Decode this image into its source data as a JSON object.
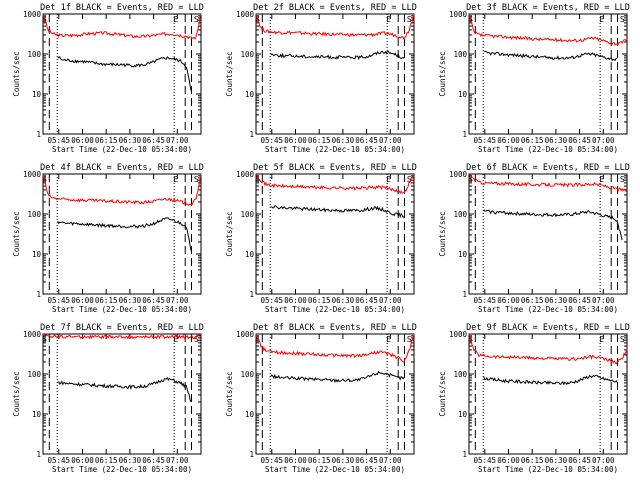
{
  "chart_data": [
    {
      "type": "line",
      "title": "Det 1f BLACK = Events, RED = LLD",
      "xlabel": "Start Time (22-Dec-10 05:34:00)",
      "ylabel": "Counts/sec",
      "yscale": "log",
      "ylim": [
        1,
        1000
      ],
      "xlim_minutes": [
        0,
        100
      ],
      "xtick_labels": [
        "05:45",
        "06:00",
        "06:15",
        "06:30",
        "06:45",
        "07:00"
      ],
      "ytick_labels": [
        "1",
        "10",
        "100",
        "1000"
      ],
      "markers": [
        "S",
        "E",
        "S"
      ],
      "series": [
        {
          "color": "#ff0000",
          "values": [
            1000,
            400,
            320,
            300,
            290,
            290,
            295,
            300,
            310,
            320,
            325,
            330,
            335,
            330,
            320,
            310,
            300,
            290,
            280,
            275,
            275,
            280,
            290,
            300,
            310,
            320,
            320,
            310,
            290,
            280,
            250,
            260,
            1000
          ]
        },
        {
          "color": "#000000",
          "values": [
            null,
            null,
            null,
            85,
            70,
            70,
            68,
            66,
            65,
            63,
            60,
            58,
            56,
            55,
            55,
            54,
            54,
            53,
            52,
            52,
            53,
            55,
            60,
            68,
            75,
            80,
            78,
            72,
            65,
            50,
            12,
            null,
            null
          ]
        }
      ]
    },
    {
      "type": "line",
      "title": "Det 2f BLACK = Events, RED = LLD",
      "xlabel": "Start Time (22-Dec-10 05:34:00)",
      "ylabel": "Counts/sec",
      "yscale": "log",
      "ylim": [
        1,
        1000
      ],
      "xlim_minutes": [
        0,
        100
      ],
      "xtick_labels": [
        "05:45",
        "06:00",
        "06:15",
        "06:30",
        "06:45",
        "07:00"
      ],
      "ytick_labels": [
        "1",
        "10",
        "100",
        "1000"
      ],
      "markers": [
        "S",
        "E",
        "S"
      ],
      "series": [
        {
          "color": "#ff0000",
          "values": [
            1000,
            450,
            370,
            360,
            350,
            345,
            345,
            345,
            340,
            335,
            330,
            325,
            320,
            318,
            315,
            312,
            310,
            308,
            305,
            302,
            300,
            300,
            302,
            305,
            310,
            320,
            330,
            320,
            300,
            280,
            250,
            400,
            1000
          ]
        },
        {
          "color": "#000000",
          "values": [
            null,
            null,
            null,
            100,
            95,
            92,
            90,
            90,
            88,
            88,
            87,
            86,
            85,
            85,
            84,
            84,
            83,
            83,
            82,
            82,
            82,
            83,
            85,
            90,
            100,
            110,
            115,
            108,
            100,
            90,
            75,
            null,
            null
          ]
        }
      ]
    },
    {
      "type": "line",
      "title": "Det 3f BLACK = Events, RED = LLD",
      "xlabel": "Start Time (22-Dec-10 05:34:00)",
      "ylabel": "Counts/sec",
      "yscale": "log",
      "ylim": [
        1,
        1000
      ],
      "xlim_minutes": [
        0,
        100
      ],
      "xtick_labels": [
        "05:45",
        "06:00",
        "06:15",
        "06:30",
        "06:45",
        "07:00"
      ],
      "ytick_labels": [
        "1",
        "10",
        "100",
        "1000"
      ],
      "markers": [
        "S",
        "E",
        "S"
      ],
      "series": [
        {
          "color": "#ff0000",
          "values": [
            1000,
            350,
            300,
            290,
            285,
            280,
            275,
            270,
            265,
            260,
            255,
            250,
            245,
            240,
            235,
            232,
            230,
            228,
            225,
            222,
            220,
            218,
            220,
            225,
            240,
            250,
            240,
            220,
            200,
            190,
            180,
            190,
            250
          ]
        },
        {
          "color": "#000000",
          "values": [
            null,
            null,
            null,
            110,
            105,
            102,
            100,
            98,
            96,
            94,
            92,
            90,
            88,
            86,
            84,
            83,
            82,
            81,
            80,
            80,
            80,
            82,
            88,
            95,
            100,
            98,
            92,
            85,
            80,
            75,
            72,
            null,
            null
          ]
        }
      ]
    },
    {
      "type": "line",
      "title": "Det 4f BLACK = Events, RED = LLD",
      "xlabel": "Start Time (22-Dec-10 05:34:00)",
      "ylabel": "Counts/sec",
      "yscale": "log",
      "ylim": [
        1,
        1000
      ],
      "xlim_minutes": [
        0,
        100
      ],
      "xtick_labels": [
        "05:45",
        "06:00",
        "06:15",
        "06:30",
        "06:45",
        "07:00"
      ],
      "ytick_labels": [
        "1",
        "10",
        "100",
        "1000"
      ],
      "markers": [
        "S",
        "E",
        "S"
      ],
      "series": [
        {
          "color": "#ff0000",
          "values": [
            1000,
            300,
            250,
            240,
            235,
            230,
            228,
            225,
            222,
            220,
            218,
            215,
            212,
            210,
            208,
            205,
            202,
            200,
            198,
            196,
            195,
            198,
            205,
            215,
            230,
            240,
            230,
            215,
            200,
            190,
            175,
            230,
            1000
          ]
        },
        {
          "color": "#000000",
          "values": [
            null,
            null,
            null,
            65,
            60,
            58,
            58,
            57,
            56,
            55,
            54,
            53,
            52,
            51,
            51,
            50,
            50,
            49,
            49,
            49,
            50,
            52,
            55,
            62,
            70,
            75,
            72,
            65,
            58,
            50,
            12,
            null,
            null
          ]
        }
      ]
    },
    {
      "type": "line",
      "title": "Det 5f BLACK = Events, RED = LLD",
      "xlabel": "Start Time (22-Dec-10 05:34:00)",
      "ylabel": "Counts/sec",
      "yscale": "log",
      "ylim": [
        1,
        1000
      ],
      "xlim_minutes": [
        0,
        100
      ],
      "xtick_labels": [
        "05:45",
        "06:00",
        "06:15",
        "06:30",
        "06:45",
        "07:00"
      ],
      "ytick_labels": [
        "1",
        "10",
        "100",
        "1000"
      ],
      "markers": [
        "S",
        "E",
        "S"
      ],
      "series": [
        {
          "color": "#ff0000",
          "values": [
            1000,
            700,
            550,
            520,
            510,
            500,
            495,
            490,
            485,
            480,
            475,
            470,
            465,
            460,
            455,
            452,
            450,
            448,
            445,
            442,
            440,
            442,
            448,
            455,
            465,
            470,
            455,
            430,
            400,
            380,
            320,
            600,
            1000
          ]
        },
        {
          "color": "#000000",
          "values": [
            null,
            null,
            null,
            160,
            150,
            145,
            142,
            140,
            138,
            136,
            134,
            132,
            130,
            128,
            126,
            125,
            124,
            123,
            122,
            122,
            122,
            124,
            128,
            135,
            140,
            135,
            125,
            110,
            100,
            95,
            90,
            null,
            null
          ]
        }
      ]
    },
    {
      "type": "line",
      "title": "Det 6f BLACK = Events, RED = LLD",
      "xlabel": "Start Time (22-Dec-10 05:34:00)",
      "ylabel": "Counts/sec",
      "yscale": "log",
      "ylim": [
        1,
        1000
      ],
      "xlim_minutes": [
        0,
        100
      ],
      "xtick_labels": [
        "05:45",
        "06:00",
        "06:15",
        "06:30",
        "06:45",
        "07:00"
      ],
      "ytick_labels": [
        "1",
        "10",
        "100",
        "1000"
      ],
      "markers": [
        "S",
        "E",
        "S"
      ],
      "series": [
        {
          "color": "#ff0000",
          "values": [
            1000,
            750,
            620,
            600,
            590,
            585,
            580,
            575,
            570,
            565,
            560,
            555,
            550,
            548,
            545,
            542,
            540,
            538,
            535,
            532,
            530,
            532,
            538,
            545,
            555,
            560,
            545,
            520,
            480,
            450,
            420,
            400,
            380
          ]
        },
        {
          "color": "#000000",
          "values": [
            null,
            null,
            null,
            120,
            115,
            112,
            110,
            108,
            106,
            104,
            102,
            100,
            99,
            98,
            97,
            96,
            96,
            95,
            95,
            95,
            96,
            98,
            102,
            108,
            112,
            108,
            100,
            92,
            85,
            80,
            70,
            22,
            null
          ]
        }
      ]
    },
    {
      "type": "line",
      "title": "Det 7f BLACK = Events, RED = LLD",
      "xlabel": "Start Time (22-Dec-10 05:34:00)",
      "ylabel": "Counts/sec",
      "yscale": "log",
      "ylim": [
        1,
        1000
      ],
      "xlim_minutes": [
        0,
        100
      ],
      "xtick_labels": [
        "05:45",
        "06:00",
        "06:15",
        "06:30",
        "06:45",
        "07:00"
      ],
      "ytick_labels": [
        "1",
        "10",
        "100",
        "1000"
      ],
      "markers": [
        "S",
        "E",
        "S"
      ],
      "series": [
        {
          "color": "#ff0000",
          "values": [
            1000,
            900,
            880,
            870,
            860,
            860,
            855,
            855,
            850,
            850,
            850,
            848,
            848,
            845,
            845,
            845,
            842,
            842,
            840,
            840,
            840,
            842,
            845,
            848,
            850,
            855,
            850,
            848,
            845,
            840,
            830,
            850,
            1000
          ]
        },
        {
          "color": "#000000",
          "values": [
            null,
            null,
            null,
            62,
            60,
            58,
            57,
            56,
            55,
            54,
            53,
            52,
            51,
            50,
            50,
            49,
            49,
            48,
            48,
            48,
            49,
            51,
            55,
            62,
            70,
            75,
            72,
            65,
            58,
            48,
            20,
            null,
            null
          ]
        }
      ]
    },
    {
      "type": "line",
      "title": "Det 8f BLACK = Events, RED = LLD",
      "xlabel": "Start Time (22-Dec-10 05:34:00)",
      "ylabel": "Counts/sec",
      "yscale": "log",
      "ylim": [
        1,
        1000
      ],
      "xlim_minutes": [
        0,
        100
      ],
      "xtick_labels": [
        "05:45",
        "06:00",
        "06:15",
        "06:30",
        "06:45",
        "07:00"
      ],
      "ytick_labels": [
        "1",
        "10",
        "100",
        "1000"
      ],
      "markers": [
        "S",
        "E",
        "S"
      ],
      "series": [
        {
          "color": "#ff0000",
          "values": [
            1000,
            500,
            380,
            360,
            350,
            345,
            340,
            335,
            330,
            325,
            320,
            315,
            310,
            305,
            300,
            298,
            295,
            292,
            290,
            288,
            285,
            290,
            300,
            320,
            340,
            360,
            340,
            310,
            280,
            250,
            200,
            380,
            1000
          ]
        },
        {
          "color": "#000000",
          "values": [
            null,
            null,
            null,
            90,
            85,
            82,
            80,
            79,
            78,
            77,
            76,
            75,
            74,
            73,
            72,
            71,
            70,
            70,
            70,
            70,
            70,
            72,
            78,
            88,
            100,
            110,
            105,
            95,
            85,
            80,
            80,
            null,
            null
          ]
        }
      ]
    },
    {
      "type": "line",
      "title": "Det 9f BLACK = Events, RED = LLD",
      "xlabel": "Start Time (22-Dec-10 05:34:00)",
      "ylabel": "Counts/sec",
      "yscale": "log",
      "ylim": [
        1,
        1000
      ],
      "xlim_minutes": [
        0,
        100
      ],
      "xtick_labels": [
        "05:45",
        "06:00",
        "06:15",
        "06:30",
        "06:45",
        "07:00"
      ],
      "ytick_labels": [
        "1",
        "10",
        "100",
        "1000"
      ],
      "markers": [
        "S",
        "E",
        "S"
      ],
      "series": [
        {
          "color": "#ff0000",
          "values": [
            1000,
            400,
            300,
            290,
            280,
            275,
            270,
            268,
            265,
            262,
            260,
            258,
            255,
            252,
            250,
            248,
            245,
            242,
            240,
            238,
            236,
            238,
            242,
            250,
            260,
            270,
            260,
            245,
            225,
            210,
            190,
            250,
            400
          ]
        },
        {
          "color": "#000000",
          "values": [
            null,
            null,
            null,
            80,
            75,
            72,
            70,
            68,
            67,
            66,
            65,
            64,
            63,
            62,
            61,
            60,
            60,
            59,
            59,
            59,
            60,
            62,
            68,
            75,
            85,
            90,
            85,
            78,
            72,
            68,
            65,
            null,
            null
          ]
        }
      ]
    }
  ]
}
